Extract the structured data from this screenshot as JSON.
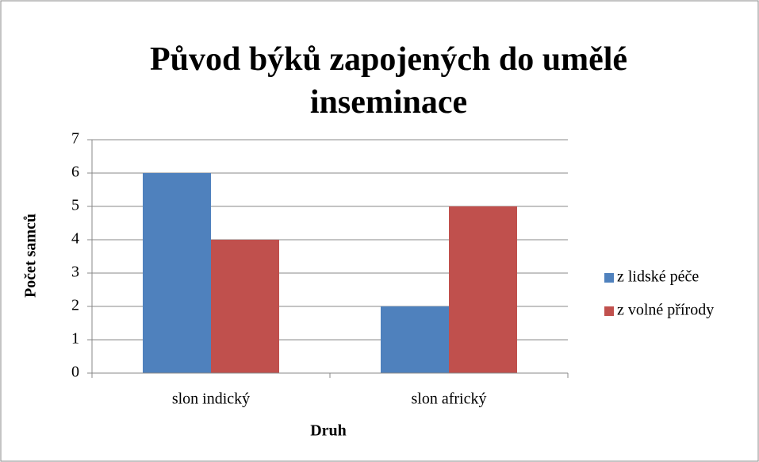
{
  "chart_data": {
    "type": "bar",
    "title": "Původ býků zapojených do umělé inseminace",
    "x_label": "Druh",
    "y_label": "Počet samců",
    "categories": [
      "slon indický",
      "slon africký"
    ],
    "series": [
      {
        "name": "z lidské péče",
        "color": "#4f81bd",
        "values": [
          6,
          2
        ]
      },
      {
        "name": "z volné přírody",
        "color": "#c0504d",
        "values": [
          4,
          5
        ]
      }
    ],
    "ylim": [
      0,
      7
    ],
    "yticks": [
      0,
      1,
      2,
      3,
      4,
      5,
      6,
      7
    ],
    "grid": true,
    "legend": "right"
  }
}
